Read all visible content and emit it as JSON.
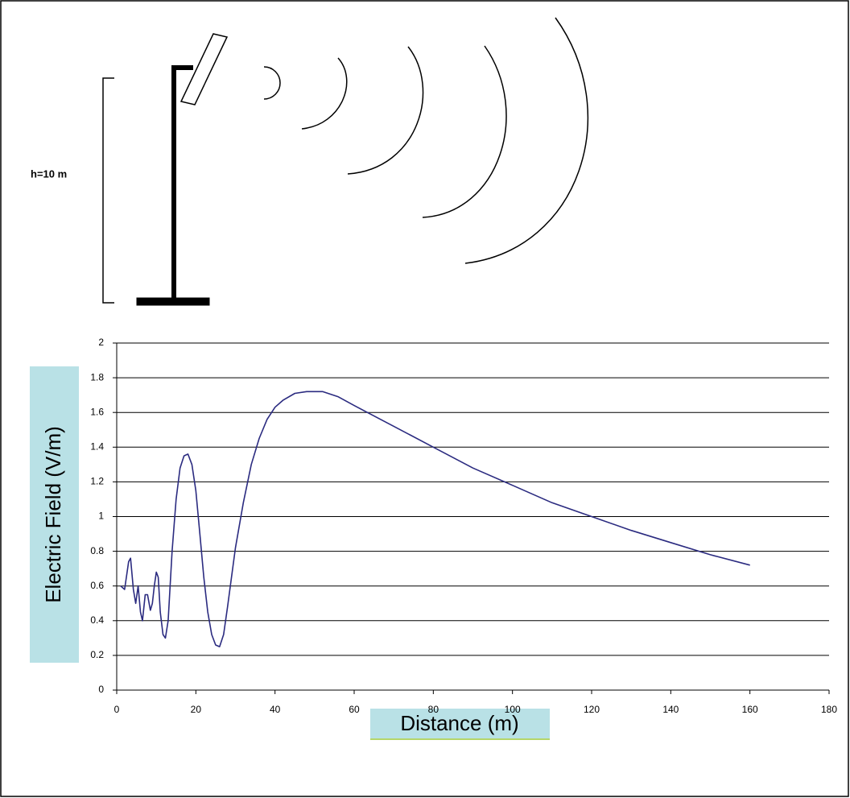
{
  "diagram": {
    "height_label": "h=10 m"
  },
  "chart_data": {
    "type": "line",
    "ylabel": "Electric Field (V/m)",
    "xlabel": "Distance (m)",
    "x": [
      1,
      2,
      3,
      3.5,
      4.2,
      4.8,
      5.4,
      6,
      6.5,
      7.2,
      7.8,
      8.5,
      9,
      9.5,
      10,
      10.5,
      11,
      11.7,
      12.3,
      13,
      14,
      15,
      16,
      17,
      18,
      19,
      20,
      21,
      22,
      23,
      24,
      25,
      26,
      27,
      28,
      29,
      30,
      32,
      34,
      36,
      38,
      40,
      42,
      45,
      48,
      52,
      56,
      60,
      70,
      80,
      90,
      100,
      110,
      120,
      130,
      140,
      150,
      160
    ],
    "values": [
      0.6,
      0.58,
      0.74,
      0.76,
      0.58,
      0.5,
      0.6,
      0.45,
      0.4,
      0.55,
      0.55,
      0.46,
      0.5,
      0.6,
      0.68,
      0.65,
      0.45,
      0.32,
      0.3,
      0.4,
      0.8,
      1.1,
      1.28,
      1.35,
      1.36,
      1.3,
      1.15,
      0.9,
      0.65,
      0.45,
      0.32,
      0.26,
      0.25,
      0.32,
      0.48,
      0.65,
      0.82,
      1.08,
      1.3,
      1.45,
      1.56,
      1.63,
      1.67,
      1.71,
      1.72,
      1.72,
      1.69,
      1.64,
      1.52,
      1.4,
      1.28,
      1.18,
      1.08,
      1.0,
      0.92,
      0.85,
      0.78,
      0.72
    ],
    "color": "#2b2b80",
    "xlim": [
      0,
      180
    ],
    "xticks": [
      0,
      20,
      40,
      60,
      80,
      100,
      120,
      140,
      160,
      180
    ],
    "ylim": [
      0,
      2
    ],
    "yticks": [
      0,
      0.2,
      0.4,
      0.6,
      0.8,
      1,
      1.2,
      1.4,
      1.6,
      1.8,
      2
    ],
    "grid": true
  }
}
